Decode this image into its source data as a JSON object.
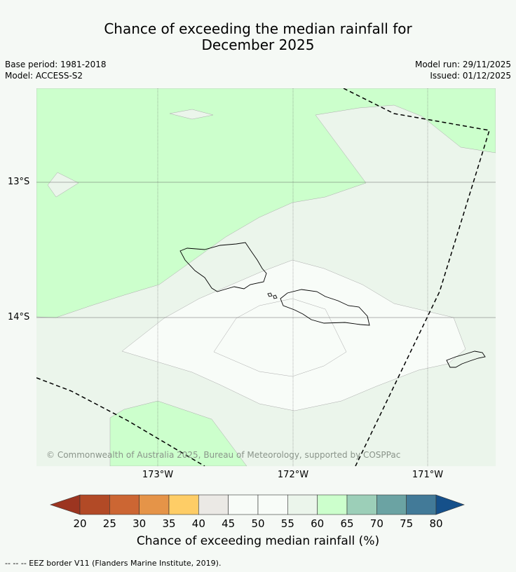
{
  "title_line1": "Chance of exceeding the median rainfall for",
  "title_line2": "December 2025",
  "base_period": "Base period: 1981-2018",
  "model": "Model: ACCESS-S2",
  "model_run": "Model run: 29/11/2025",
  "issued": "Issued: 01/12/2025",
  "copyright": "© Commonwealth of Australia 2025, Bureau of Meteorology, supported by COSPPac",
  "lat_labels": [
    "13°S",
    "14°S"
  ],
  "lon_labels": [
    "173°W",
    "172°W",
    "171°W"
  ],
  "colorbar": {
    "title": "Chance of exceeding median rainfall (%)",
    "ticks": [
      "20",
      "25",
      "30",
      "35",
      "40",
      "45",
      "50",
      "55",
      "60",
      "65",
      "70",
      "75",
      "80"
    ],
    "colors": [
      "#b24a26",
      "#cc6633",
      "#e59448",
      "#fecd66",
      "#ebe9e5",
      "#f8fcf8",
      "#f8fcf8",
      "#ebf5eb",
      "#ccffcc",
      "#9ccfb8",
      "#6ba3a3",
      "#427a98"
    ],
    "under_color": "#9c3520",
    "over_color": "#15508a"
  },
  "footnote": "-- -- -- EEZ border V11 (Flanders Marine Institute, 2019)."
}
